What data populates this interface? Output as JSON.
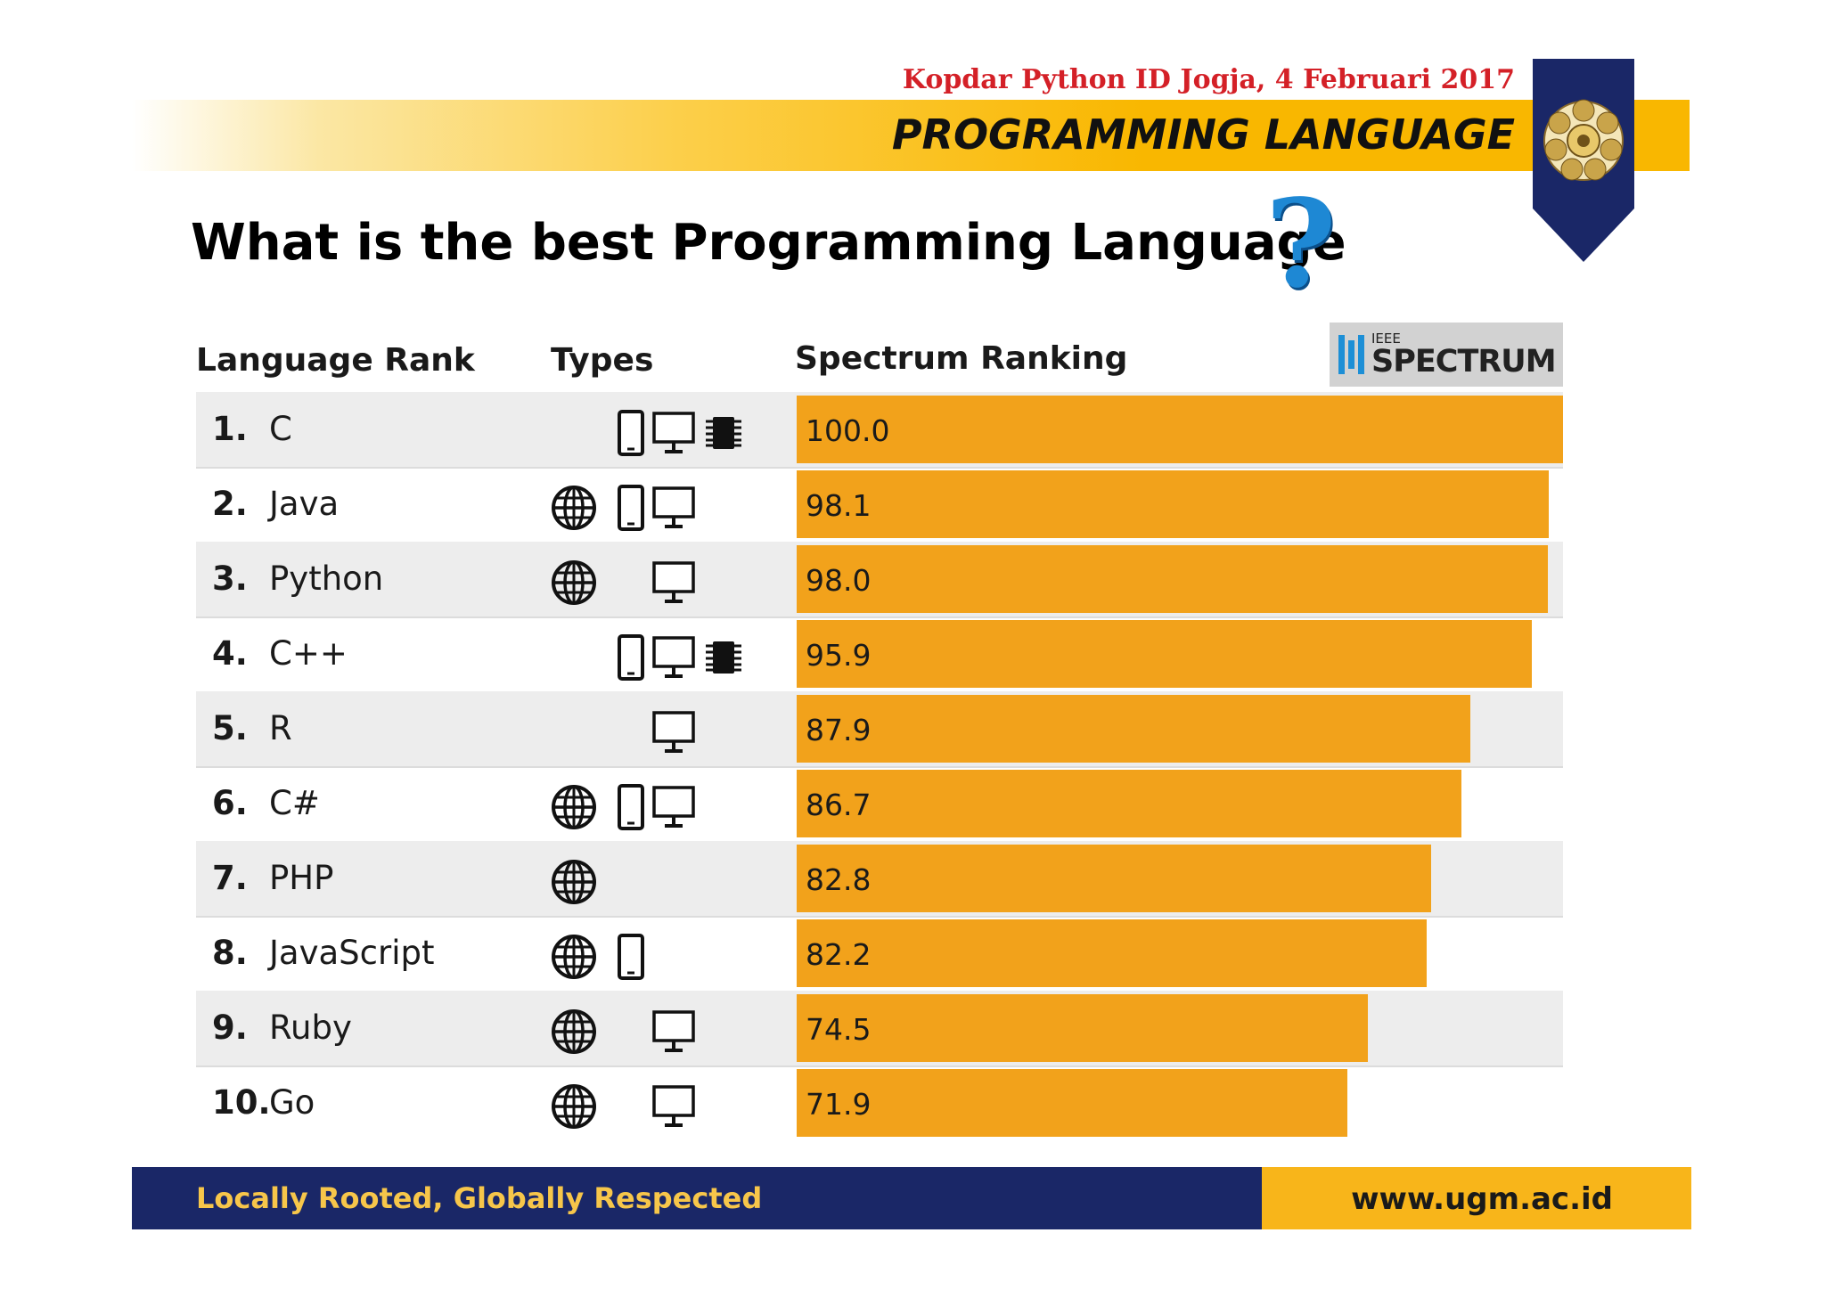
{
  "header": {
    "event": "Kopdar Python ID Jogja, 4 Februari 2017",
    "section_title": "PROGRAMMING LANGUAGE"
  },
  "question": {
    "text": "What is the best Programming Language",
    "mark": "?"
  },
  "source_logo": {
    "small": "IEEE",
    "big": "SPECTRUM",
    "color": "#1d8fd6"
  },
  "table": {
    "headers": [
      "Language Rank",
      "Types",
      "Spectrum Ranking"
    ],
    "bar_color": "#f2a21b",
    "max_score": 100.0,
    "rows": [
      {
        "rank": "1.",
        "name": "C",
        "types": [
          "mobile",
          "desktop",
          "embedded"
        ],
        "score": "100.0"
      },
      {
        "rank": "2.",
        "name": "Java",
        "types": [
          "web",
          "mobile",
          "desktop"
        ],
        "score": "98.1"
      },
      {
        "rank": "3.",
        "name": "Python",
        "types": [
          "web",
          "desktop"
        ],
        "score": "98.0"
      },
      {
        "rank": "4.",
        "name": "C++",
        "types": [
          "mobile",
          "desktop",
          "embedded"
        ],
        "score": "95.9"
      },
      {
        "rank": "5.",
        "name": "R",
        "types": [
          "desktop"
        ],
        "score": "87.9"
      },
      {
        "rank": "6.",
        "name": "C#",
        "types": [
          "web",
          "mobile",
          "desktop"
        ],
        "score": "86.7"
      },
      {
        "rank": "7.",
        "name": "PHP",
        "types": [
          "web"
        ],
        "score": "82.8"
      },
      {
        "rank": "8.",
        "name": "JavaScript",
        "types": [
          "web",
          "mobile"
        ],
        "score": "82.2"
      },
      {
        "rank": "9.",
        "name": "Ruby",
        "types": [
          "web",
          "desktop"
        ],
        "score": "74.5"
      },
      {
        "rank": "10.",
        "name": "Go",
        "types": [
          "web",
          "desktop"
        ],
        "score": "71.9"
      }
    ]
  },
  "footer": {
    "slogan": "Locally Rooted, Globally Respected",
    "url": "www.ugm.ac.id"
  }
}
